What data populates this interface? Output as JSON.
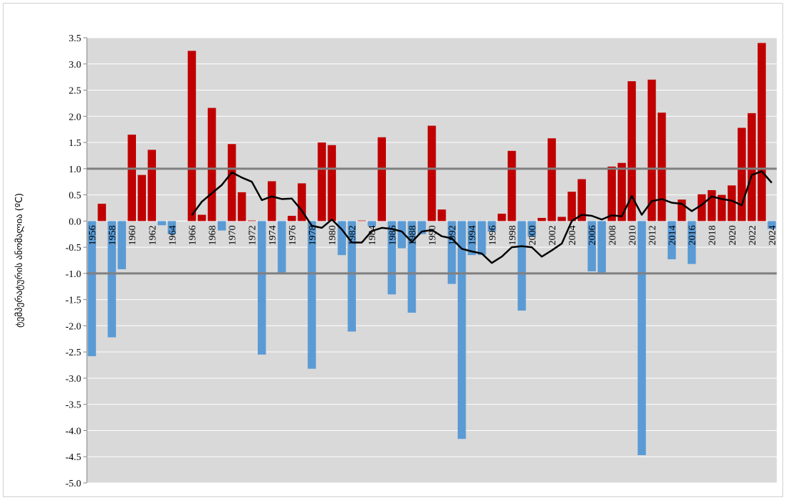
{
  "chart_data": {
    "type": "bar",
    "ylabel": "ტემპერატურის ანომალია (ºC)",
    "xlabel": "",
    "title": "",
    "ylim": [
      -5.0,
      3.5
    ],
    "y_ticks": [
      "3.5",
      "3.0",
      "2.5",
      "2.0",
      "1.5",
      "1.0",
      "0.5",
      "0.0",
      "-0.5",
      "-1.0",
      "-1.5",
      "-2.0",
      "-2.5",
      "-3.0",
      "-3.5",
      "-4.0",
      "-4.5",
      "-5.0"
    ],
    "y_tick_values": [
      3.5,
      3.0,
      2.5,
      2.0,
      1.5,
      1.0,
      0.5,
      0.0,
      -0.5,
      -1.0,
      -1.5,
      -2.0,
      -2.5,
      -3.0,
      -3.5,
      -4.0,
      -4.5,
      -5.0
    ],
    "x_tick_labels": [
      "1956",
      "1958",
      "1960",
      "1962",
      "1964",
      "1966",
      "1968",
      "1970",
      "1972",
      "1974",
      "1976",
      "1978",
      "1980",
      "1982",
      "1984",
      "1986",
      "1988",
      "1990",
      "1992",
      "1994",
      "1996",
      "1998",
      "2000",
      "2002",
      "2004",
      "2006",
      "2008",
      "2010",
      "2012",
      "2014",
      "2016",
      "2018",
      "2020",
      "2022",
      "2024"
    ],
    "grid": true,
    "plot_background": "#d9d9d9",
    "colors": {
      "positive": "#c00000",
      "negative": "#5b9bd5",
      "trend": "#000000",
      "threshold": "#7f7f7f"
    },
    "thresholds": [
      1.0,
      -1.0
    ],
    "years": [
      1956,
      1957,
      1958,
      1959,
      1960,
      1961,
      1962,
      1963,
      1964,
      1965,
      1966,
      1967,
      1968,
      1969,
      1970,
      1971,
      1972,
      1973,
      1974,
      1975,
      1976,
      1977,
      1978,
      1979,
      1980,
      1981,
      1982,
      1983,
      1984,
      1985,
      1986,
      1987,
      1988,
      1989,
      1990,
      1991,
      1992,
      1993,
      1994,
      1995,
      1996,
      1997,
      1998,
      1999,
      2000,
      2001,
      2002,
      2003,
      2004,
      2005,
      2006,
      2007,
      2008,
      2009,
      2010,
      2011,
      2012,
      2013,
      2014,
      2015,
      2016,
      2017,
      2018,
      2019,
      2020,
      2021,
      2022,
      2023,
      2024
    ],
    "values": [
      -2.58,
      0.33,
      -2.22,
      -0.92,
      1.65,
      0.88,
      1.36,
      -0.08,
      -0.25,
      0.0,
      3.25,
      0.12,
      2.16,
      -0.18,
      1.47,
      0.55,
      0.01,
      -2.55,
      0.76,
      -0.98,
      0.1,
      0.72,
      -2.82,
      1.5,
      1.45,
      -0.65,
      -2.11,
      0.01,
      -0.1,
      1.6,
      -1.4,
      -0.52,
      -1.75,
      -0.25,
      1.82,
      0.22,
      -1.2,
      -4.16,
      -0.65,
      -0.65,
      -0.2,
      0.14,
      1.34,
      -1.71,
      -0.3,
      0.06,
      1.58,
      0.08,
      0.56,
      0.8,
      -0.96,
      -0.98,
      1.04,
      1.11,
      2.67,
      -4.47,
      2.7,
      2.07,
      -0.73,
      0.41,
      -0.82,
      0.51,
      0.59,
      0.5,
      0.68,
      1.78,
      2.06,
      3.4,
      -0.15
    ],
    "trend": {
      "name": "",
      "start_year": 1966,
      "values": [
        0.11,
        0.37,
        0.53,
        0.69,
        0.93,
        0.83,
        0.75,
        0.4,
        0.47,
        0.42,
        0.43,
        0.2,
        -0.09,
        -0.13,
        0.03,
        -0.16,
        -0.41,
        -0.41,
        -0.19,
        -0.13,
        -0.15,
        -0.2,
        -0.4,
        -0.2,
        -0.17,
        -0.29,
        -0.33,
        -0.53,
        -0.58,
        -0.62,
        -0.8,
        -0.68,
        -0.5,
        -0.48,
        -0.5,
        -0.68,
        -0.56,
        -0.43,
        0.0,
        0.12,
        0.1,
        0.03,
        0.11,
        0.09,
        0.48,
        0.12,
        0.38,
        0.42,
        0.35,
        0.33,
        0.19,
        0.31,
        0.47,
        0.42,
        0.39,
        0.3,
        0.88,
        0.95,
        0.73
      ]
    }
  }
}
